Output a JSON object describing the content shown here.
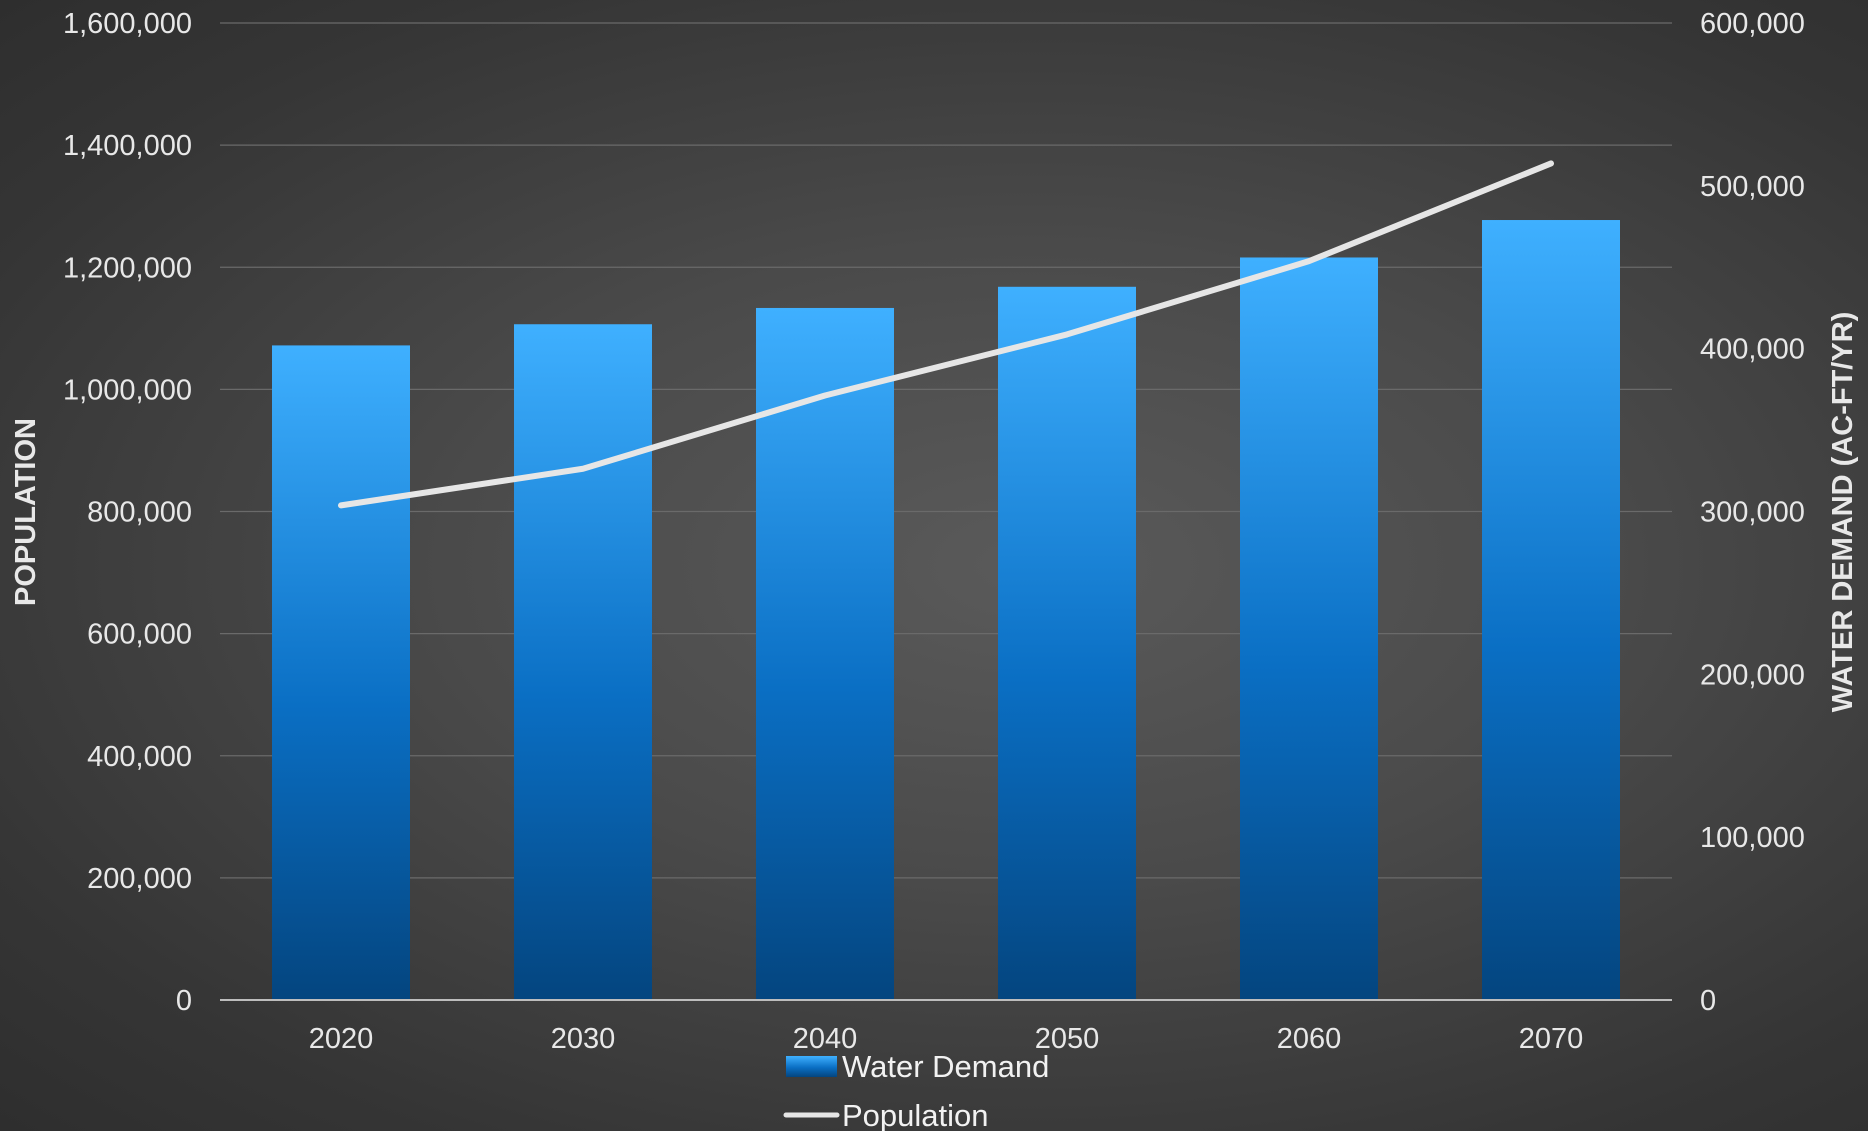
{
  "chart_data": {
    "type": "bar",
    "categories": [
      "2020",
      "2030",
      "2040",
      "2050",
      "2060",
      "2070"
    ],
    "series": [
      {
        "name": "Water Demand",
        "type": "bar",
        "axis": "right",
        "values": [
          402000,
          415000,
          425000,
          438000,
          456000,
          479000
        ],
        "color": "#1e88e5"
      },
      {
        "name": "Population",
        "type": "line",
        "axis": "left",
        "values": [
          810000,
          870000,
          990000,
          1090000,
          1210000,
          1370000
        ],
        "color": "#e6e6e6"
      }
    ],
    "y_left": {
      "label": "POPULATION",
      "ticks": [
        "0",
        "200,000",
        "400,000",
        "600,000",
        "800,000",
        "1,000,000",
        "1,200,000",
        "1,400,000",
        "1,600,000"
      ],
      "ylim": [
        0,
        1600000
      ]
    },
    "y_right": {
      "label": "WATER DEMAND (AC-FT/YR)",
      "ticks": [
        "0",
        "100,000",
        "200,000",
        "300,000",
        "400,000",
        "500,000",
        "600,000"
      ],
      "ylim": [
        0,
        600000
      ]
    },
    "grid": true,
    "legend_position": "bottom-center"
  }
}
